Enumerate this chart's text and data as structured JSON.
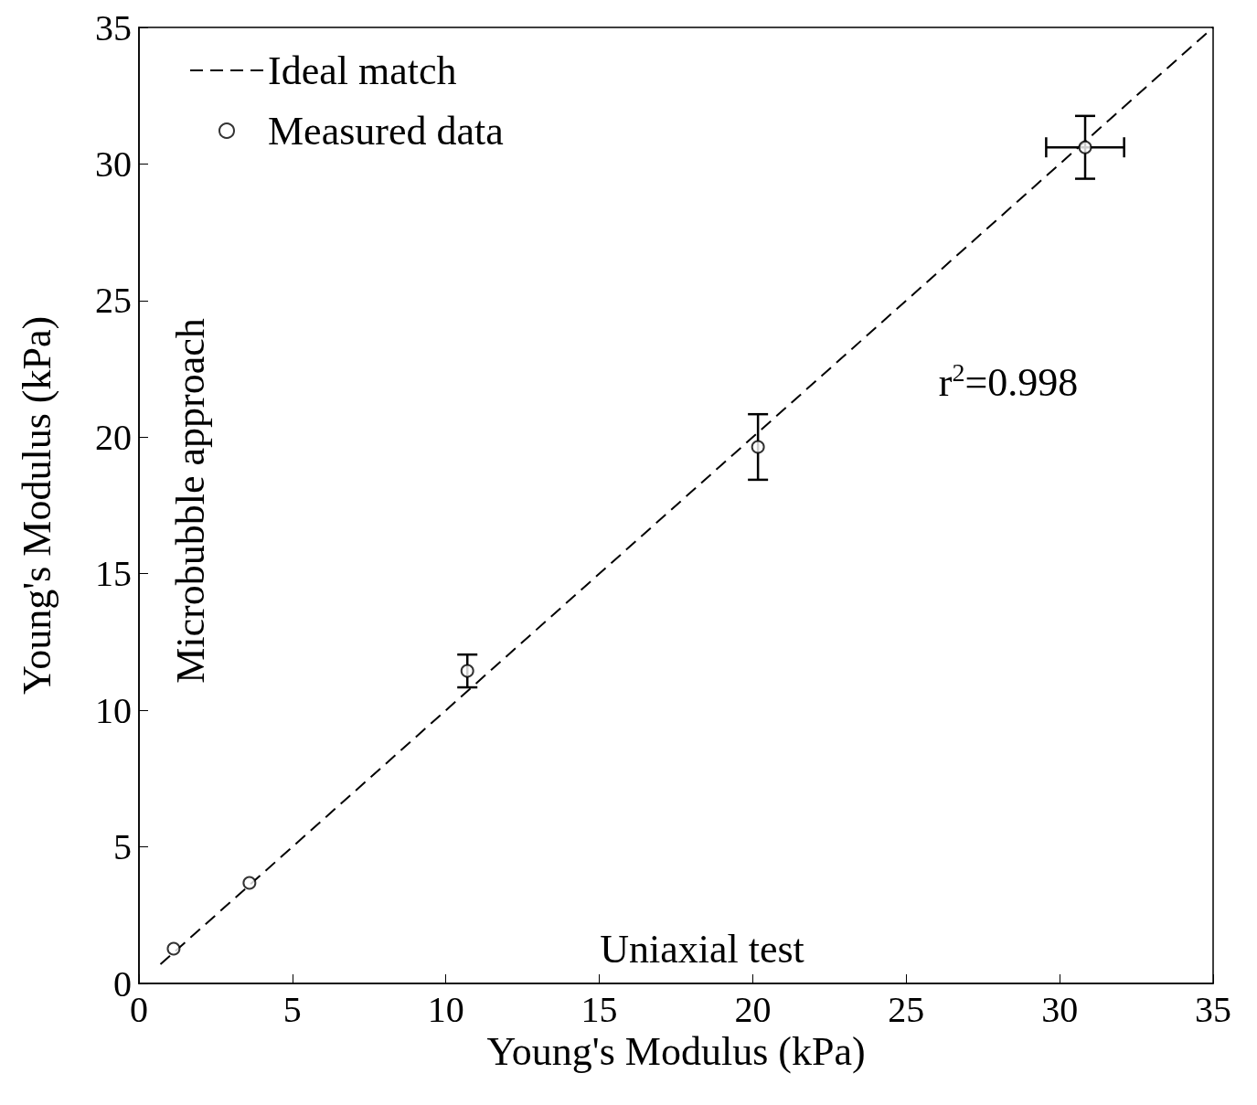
{
  "chart_data": {
    "type": "scatter",
    "xlabel": "Young's Modulus (kPa)",
    "ylabel": "Young's Modulus (kPa)",
    "xlim": [
      0,
      35
    ],
    "ylim": [
      0,
      35
    ],
    "xticks": [
      0,
      5,
      10,
      15,
      20,
      25,
      30,
      35
    ],
    "yticks": [
      0,
      5,
      10,
      15,
      20,
      25,
      30,
      35
    ],
    "grid": false,
    "legend": "top left",
    "series": [
      {
        "name": "Ideal match",
        "type": "line",
        "color": "#000000",
        "line_style": "dashed",
        "marker": "none",
        "x": [
          0.7,
          35
        ],
        "values": [
          0.7,
          35
        ]
      },
      {
        "name": "Measured data",
        "color": "#000000",
        "marker": "circle",
        "x": [
          1.13,
          3.6,
          10.7,
          20.17,
          30.83
        ],
        "values": [
          1.27,
          3.68,
          11.44,
          19.64,
          30.61
        ],
        "errors": [
          null,
          null,
          0.6,
          1.2,
          1.15
        ],
        "xerrors": [
          null,
          null,
          null,
          null,
          1.27
        ]
      }
    ],
    "annotations": [
      "Microbubble approach",
      "Uniaxial test",
      "r$^{2}$=0.998"
    ]
  }
}
